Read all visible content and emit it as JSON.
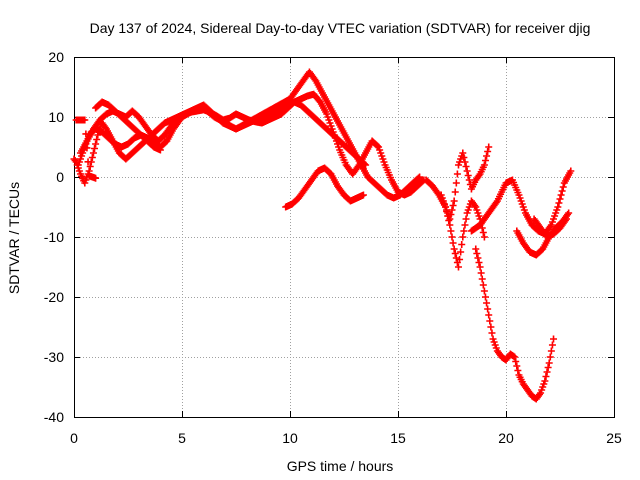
{
  "chart_data": {
    "type": "scatter",
    "title": "Day 137 of 2024, Sidereal Day-to-day VTEC variation (SDTVAR) for receiver djig",
    "xlabel": "GPS time / hours",
    "ylabel": "SDTVAR / TECUs",
    "xlim": [
      0,
      25
    ],
    "ylim": [
      -40,
      20
    ],
    "xticks": [
      "0",
      "5",
      "10",
      "15",
      "20",
      "25"
    ],
    "yticks": [
      "-40",
      "-30",
      "-20",
      "-10",
      "0",
      "10",
      "20"
    ],
    "grid": true,
    "marker": "+",
    "color": "#ff0000",
    "series": [
      {
        "x": [
          0.0,
          0.1,
          0.2,
          0.3,
          0.5,
          0.7,
          0.9,
          1.1,
          1.3,
          1.5,
          1.8,
          2.1,
          2.4,
          2.7,
          3.0,
          3.3,
          3.6,
          3.9,
          4.2,
          4.5,
          4.8,
          5.1,
          5.4,
          5.7,
          6.0,
          6.3,
          6.6,
          6.9,
          7.2,
          7.5,
          7.8,
          8.1,
          8.4,
          8.7,
          9.0,
          9.3,
          9.6,
          9.9,
          10.2,
          10.5,
          10.8,
          11.1,
          11.4,
          11.7,
          12.0,
          12.3,
          12.6,
          12.9,
          13.2,
          13.5,
          13.8,
          14.1,
          14.4,
          14.7,
          15.0,
          15.3,
          15.6,
          15.9,
          16.2
        ],
        "y": [
          3,
          2.5,
          1.5,
          0.5,
          -1,
          1,
          4,
          7,
          9,
          8,
          6,
          4,
          3,
          4,
          5,
          6,
          7,
          8,
          9,
          9.5,
          10,
          10.5,
          10.8,
          11,
          11.2,
          10.8,
          10.2,
          9.5,
          9.8,
          10.5,
          10,
          9.5,
          9.2,
          9,
          9.5,
          10,
          10.5,
          11.5,
          12.5,
          13,
          13.5,
          13.8,
          12.5,
          10.5,
          7.5,
          4.5,
          2,
          0.5,
          2,
          4,
          6,
          5,
          2,
          -0.5,
          -2.5,
          -3,
          -2.5,
          -1.5,
          -0.5
        ]
      },
      {
        "x": [
          0.2,
          0.4,
          0.6,
          0.8,
          1.0,
          1.3,
          1.6,
          1.9,
          2.2,
          2.5,
          2.8,
          3.1,
          3.4,
          3.7,
          4.0,
          4.3,
          4.6,
          5.0,
          5.5,
          6.0,
          6.5,
          7.0,
          7.5,
          8.0,
          8.5,
          9.0,
          9.5,
          10.0,
          10.3,
          10.6,
          10.9,
          11.2,
          11.5,
          11.8,
          12.1,
          12.4,
          12.7,
          13.0,
          13.3,
          13.6,
          13.9,
          14.2,
          14.5,
          14.8,
          15.1,
          15.4,
          15.7,
          16.0
        ],
        "y": [
          2,
          4,
          6,
          7.5,
          8,
          7.5,
          6.5,
          5.5,
          5,
          5.5,
          6.5,
          7,
          6.5,
          5.5,
          5,
          6,
          8,
          10,
          11,
          11.5,
          10,
          9,
          8,
          9,
          10,
          11,
          12,
          13,
          14.5,
          16,
          17.5,
          16,
          14,
          12,
          10,
          8,
          6,
          4,
          2,
          0,
          -1,
          -2,
          -3,
          -3.5,
          -3,
          -2,
          -1,
          0
        ]
      },
      {
        "x": [
          0.3,
          0.6,
          0.9,
          1.2,
          1.5,
          1.8,
          2.1,
          2.4,
          2.7,
          3.0,
          3.3,
          3.6,
          3.9,
          4.2,
          4.5,
          4.8,
          5.1,
          5.4,
          5.7,
          6.0,
          6.3,
          6.6,
          6.9,
          7.2,
          7.5,
          7.8,
          8.1,
          8.4,
          8.7,
          9.0,
          9.3,
          9.6,
          9.9,
          10.2,
          10.5,
          10.8,
          11.1,
          11.4,
          11.7,
          12.0,
          12.3,
          12.6,
          12.9,
          13.2,
          13.5
        ],
        "y": [
          4,
          6,
          8,
          9.5,
          10.5,
          11,
          10.5,
          10,
          11,
          10,
          8.5,
          7,
          6,
          7,
          8.5,
          9.5,
          10.5,
          11,
          11.5,
          12,
          11,
          10,
          9,
          8.5,
          8,
          8.5,
          9,
          9.5,
          10,
          10.5,
          11,
          11.5,
          12,
          12.5,
          12,
          11,
          10,
          9,
          8,
          7,
          6,
          5,
          4,
          3,
          2
        ]
      },
      {
        "x": [
          1.0,
          1.3,
          1.6,
          1.9,
          2.2,
          2.5,
          2.8,
          3.1,
          3.4,
          3.7,
          4.0
        ],
        "y": [
          11.5,
          12.5,
          12,
          11,
          10,
          9,
          8,
          7,
          6,
          5,
          4.5
        ]
      },
      {
        "x": [
          0.1,
          0.3,
          0.5,
          0.7,
          1.0
        ],
        "y": [
          9.5,
          9.5,
          9.5,
          0.2,
          -0.2
        ]
      },
      {
        "x": [
          9.8,
          10.1,
          10.4,
          10.7,
          11.0,
          11.3,
          11.6,
          11.9,
          12.2,
          12.5,
          12.8,
          13.1,
          13.4
        ],
        "y": [
          -5,
          -4.5,
          -3.5,
          -2,
          -0.5,
          1,
          1.5,
          0.5,
          -1.5,
          -3,
          -4,
          -3.5,
          -3
        ]
      },
      {
        "x": [
          16.3,
          16.6,
          16.9,
          17.2,
          17.4,
          17.6,
          17.8,
          18.0,
          18.2,
          18.4,
          18.6,
          18.8,
          19.0,
          19.2
        ],
        "y": [
          -0.5,
          -1.5,
          -3,
          -5,
          -7,
          -4,
          2,
          4,
          1,
          -2,
          -0.5,
          0.5,
          2,
          5
        ]
      },
      {
        "x": [
          17.0,
          17.2,
          17.4,
          17.6,
          17.8,
          18.0,
          18.2,
          18.4,
          18.6,
          18.8,
          19.0
        ],
        "y": [
          -3,
          -5,
          -8,
          -12,
          -15,
          -10,
          -6,
          -4,
          -5,
          -7,
          -10
        ]
      },
      {
        "x": [
          18.6,
          18.8,
          19.0,
          19.2,
          19.4,
          19.6,
          19.8,
          20.0,
          20.2,
          20.4,
          20.6,
          20.8,
          21.0,
          21.2,
          21.4,
          21.6,
          21.8,
          22.0,
          22.2
        ],
        "y": [
          -12,
          -15,
          -19,
          -23,
          -27,
          -29,
          -30,
          -30.5,
          -29.5,
          -30,
          -33,
          -34.5,
          -35.5,
          -36.5,
          -37,
          -36,
          -34,
          -31,
          -27
        ]
      },
      {
        "x": [
          18.4,
          18.8,
          19.2,
          19.6,
          20.0,
          20.3,
          20.6,
          20.9,
          21.2,
          21.5,
          21.8,
          22.1,
          22.4,
          22.7,
          23.0
        ],
        "y": [
          -9,
          -8,
          -6,
          -4,
          -1,
          -0.5,
          -3,
          -6,
          -8,
          -9,
          -9.5,
          -8,
          -5,
          -1,
          1
        ]
      },
      {
        "x": [
          20.5,
          20.8,
          21.1,
          21.4,
          21.7,
          22.0,
          22.3,
          22.6,
          22.9
        ],
        "y": [
          -9,
          -11,
          -12.5,
          -13,
          -12,
          -10,
          -8.5,
          -7.5,
          -6
        ]
      },
      {
        "x": [
          21.3,
          21.6,
          21.9,
          22.2,
          22.5,
          22.8
        ],
        "y": [
          -7,
          -8.5,
          -10,
          -9.5,
          -8.5,
          -7
        ]
      }
    ]
  }
}
